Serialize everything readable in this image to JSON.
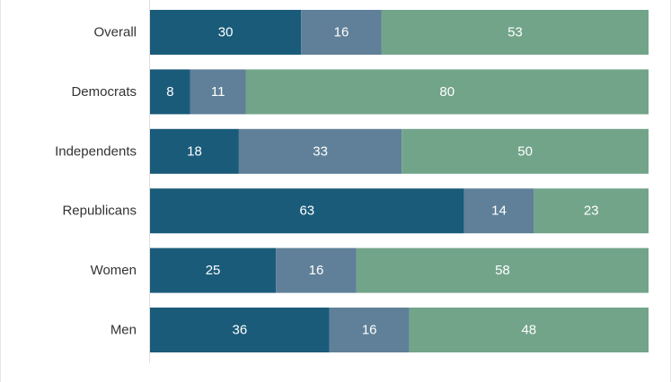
{
  "chart_data": {
    "type": "bar",
    "orientation": "horizontal",
    "stacked": true,
    "categories": [
      "Overall",
      "Democrats",
      "Independents",
      "Republicans",
      "Women",
      "Men"
    ],
    "series": [
      {
        "values": [
          30,
          8,
          18,
          63,
          25,
          36
        ],
        "color": "#1a5b7a"
      },
      {
        "values": [
          16,
          11,
          33,
          14,
          16,
          16
        ],
        "color": "#5f8098"
      },
      {
        "values": [
          53,
          80,
          50,
          23,
          58,
          48
        ],
        "color": "#72a48a"
      }
    ],
    "data_labels": true,
    "grid": false,
    "legend": "none"
  }
}
